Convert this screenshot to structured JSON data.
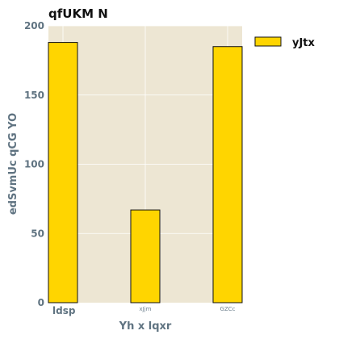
{
  "chart_data": {
    "type": "bar",
    "title": "qfUKM N",
    "xlabel": "Yh  x lqxr",
    "ylabel": "edSvmUc qCG YO",
    "categories": [
      "ldsp",
      "xJjm",
      "GZCc"
    ],
    "series": [
      {
        "name": "yJtx",
        "values": [
          188,
          67,
          185
        ],
        "color": "#ffd500"
      }
    ],
    "ylim": [
      0,
      200
    ],
    "yticks": [
      0,
      50,
      100,
      150,
      200
    ],
    "grid": true,
    "legend": "top-right",
    "colors": {
      "plot_background": "#ede6d3",
      "grid": "#ffffff",
      "bar_edge": "#111111"
    }
  }
}
